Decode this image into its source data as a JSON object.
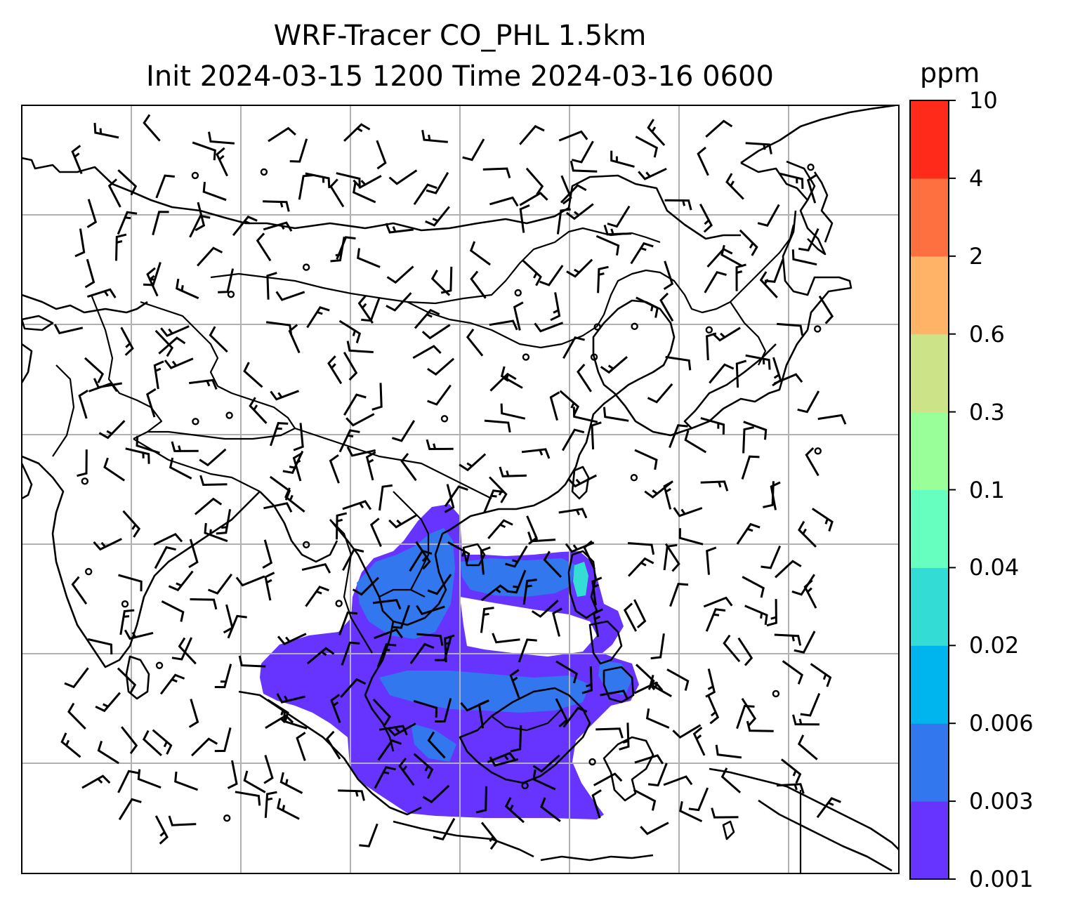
{
  "title": {
    "line1": "WRF-Tracer CO_PHL 1.5km",
    "line2": "Init 2024-03-15 1200 Time 2024-03-16 0600"
  },
  "colorbar": {
    "unit": "ppm",
    "levels": [
      "0.001",
      "0.003",
      "0.006",
      "0.02",
      "0.04",
      "0.1",
      "0.3",
      "0.6",
      "2",
      "4",
      "10"
    ],
    "colors": [
      "#6633ff",
      "#3377ee",
      "#00b4ee",
      "#33ddd6",
      "#66ffbf",
      "#99ff99",
      "#cce388",
      "#ffb366",
      "#ff7040",
      "#ff2a1a"
    ]
  },
  "colors": {
    "plume_low": "#6633ff",
    "plume_mid": "#3377ee",
    "plume_high": "#33ddd6",
    "grid": "#b0b0b0",
    "coast": "#000000"
  },
  "map": {
    "gridlines": true,
    "wind_barbs": true,
    "features": [
      "coastlines",
      "country-borders",
      "gridlines",
      "wind-barbs",
      "tracer-plume"
    ]
  }
}
